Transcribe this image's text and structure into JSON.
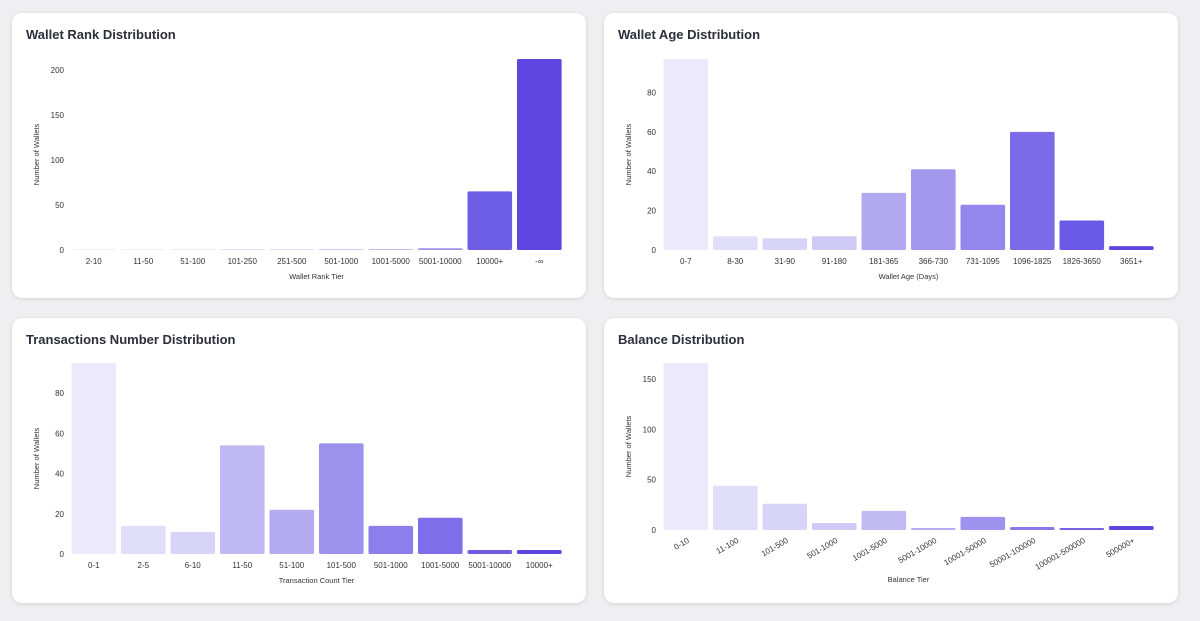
{
  "chart_data": [
    {
      "type": "bar",
      "title": "Wallet Rank Distribution",
      "xlabel": "Wallet Rank Tier",
      "ylabel": "Number of Wallets",
      "categories": [
        "2-10",
        "11-50",
        "51-100",
        "101-250",
        "251-500",
        "501-1000",
        "1001-5000",
        "5001-10000",
        "10000+",
        "-∞"
      ],
      "values": [
        0,
        0,
        0,
        1,
        0,
        1,
        1,
        2,
        65,
        212
      ],
      "ylim": [
        0,
        212
      ],
      "yticks": [
        0,
        50,
        100,
        150,
        200
      ],
      "colors": [
        "#ebe9fb",
        "#ebe9fb",
        "#e4e2fa",
        "#dcd9f8",
        "#d3cef6",
        "#c9c3f3",
        "#bdb5f1",
        "#9d92ec",
        "#6e5ee6",
        "#5f46e3"
      ]
    },
    {
      "type": "bar",
      "title": "Wallet Age Distribution",
      "xlabel": "Wallet Age (Days)",
      "ylabel": "Number of Wallets",
      "categories": [
        "0-7",
        "8-30",
        "31-90",
        "91-180",
        "181-365",
        "366-730",
        "731-1095",
        "1096-1825",
        "1826-3650",
        "3651+"
      ],
      "values": [
        97,
        7,
        6,
        7,
        29,
        41,
        23,
        60,
        15,
        2
      ],
      "ylim": [
        0,
        97
      ],
      "yticks": [
        0,
        20,
        40,
        60,
        80
      ],
      "colors": [
        "#ebe9fb",
        "#e1def9",
        "#d8d4f7",
        "#cec9f5",
        "#b1a8f0",
        "#a397ee",
        "#9386ec",
        "#7b6be8",
        "#6a59e6",
        "#5f46e3"
      ]
    },
    {
      "type": "bar",
      "title": "Transactions Number Distribution",
      "xlabel": "Transaction Count Tier",
      "ylabel": "Number of Wallets",
      "categories": [
        "0-1",
        "2-5",
        "6-10",
        "11-50",
        "51-100",
        "101-500",
        "501-1000",
        "1001-5000",
        "5001-10000",
        "10000+"
      ],
      "values": [
        95,
        14,
        11,
        54,
        22,
        55,
        14,
        18,
        2,
        2
      ],
      "ylim": [
        0,
        95
      ],
      "yticks": [
        0,
        20,
        40,
        60,
        80
      ],
      "colors": [
        "#ebe9fb",
        "#e1def9",
        "#d8d4f7",
        "#c0b8f2",
        "#b3aaf0",
        "#9c91ed",
        "#8d7feb",
        "#7e6ee9",
        "#6e5ee6",
        "#5f46e3"
      ]
    },
    {
      "type": "bar",
      "title": "Balance Distribution",
      "xlabel": "Balance Tier",
      "ylabel": "Number of Wallets",
      "categories": [
        "0-10",
        "11-100",
        "101-500",
        "501-1000",
        "1001-5000",
        "5001-10000",
        "10001-50000",
        "50001-100000",
        "100001-500000",
        "500000+"
      ],
      "values": [
        166,
        44,
        26,
        7,
        19,
        2,
        13,
        3,
        2,
        4
      ],
      "ylim": [
        0,
        166
      ],
      "yticks": [
        0,
        50,
        100,
        150
      ],
      "rotate_labels": true,
      "colors": [
        "#ebe9fb",
        "#e1def9",
        "#d8d4f7",
        "#cec9f5",
        "#c1baf3",
        "#b5acf1",
        "#9d92ed",
        "#8878ea",
        "#7463e7",
        "#5f46e3"
      ]
    }
  ]
}
